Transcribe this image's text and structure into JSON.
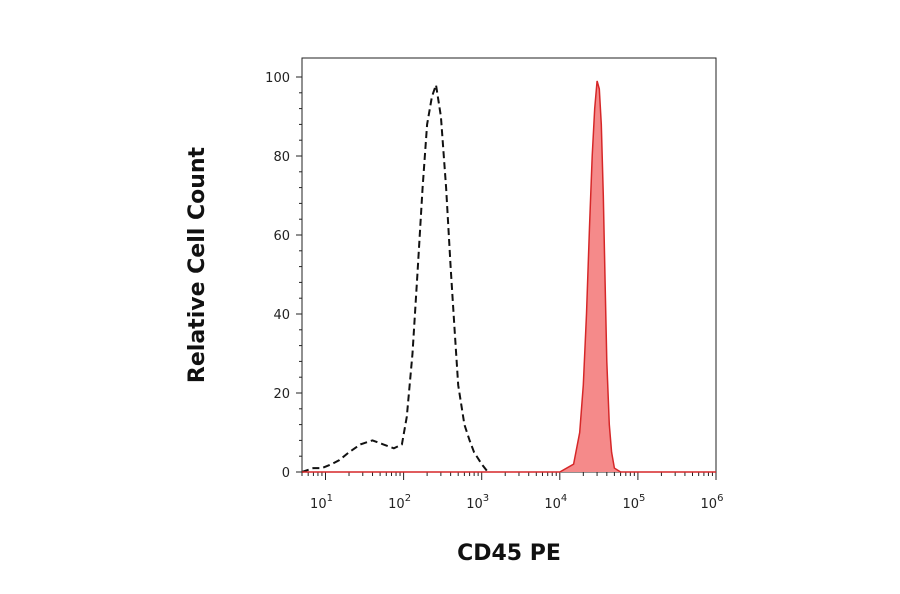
{
  "chart_data": {
    "type": "area",
    "title": "",
    "xlabel": "CD45 PE",
    "ylabel": "Relative Cell Count",
    "xscale": "log",
    "xlim": [
      5,
      1000000
    ],
    "ylim": [
      0,
      100
    ],
    "grid": false,
    "legend": "none",
    "x_ticks": [
      {
        "value": 10,
        "base": "10",
        "exp": "1"
      },
      {
        "value": 100,
        "base": "10",
        "exp": "2"
      },
      {
        "value": 1000,
        "base": "10",
        "exp": "3"
      },
      {
        "value": 10000,
        "base": "10",
        "exp": "4"
      },
      {
        "value": 100000,
        "base": "10",
        "exp": "5"
      },
      {
        "value": 1000000,
        "base": "10",
        "exp": "6"
      }
    ],
    "y_ticks": [
      "0",
      "20",
      "40",
      "60",
      "80",
      "100"
    ],
    "series": [
      {
        "style": "dashed-line",
        "color": "#111111",
        "x": [
          5,
          7,
          9,
          12,
          15,
          20,
          28,
          40,
          55,
          75,
          95,
          110,
          130,
          150,
          175,
          200,
          230,
          260,
          300,
          350,
          400,
          450,
          500,
          600,
          700,
          800,
          1000,
          1200
        ],
        "y": [
          0,
          1,
          1,
          2,
          3,
          5,
          7,
          8,
          7,
          6,
          7,
          14,
          30,
          50,
          72,
          88,
          95,
          98,
          90,
          72,
          52,
          36,
          22,
          12,
          8,
          5,
          2,
          0
        ]
      },
      {
        "style": "filled-area",
        "color": "#d62728",
        "fill": "#f58a8a",
        "x": [
          5,
          10000,
          15000,
          18000,
          20000,
          22000,
          24000,
          26000,
          28000,
          30000,
          32000,
          34000,
          36000,
          38000,
          40000,
          43000,
          46000,
          50000,
          60000,
          1000000
        ],
        "y": [
          0,
          0,
          2,
          10,
          22,
          40,
          62,
          80,
          92,
          99,
          97,
          88,
          70,
          48,
          28,
          12,
          5,
          1,
          0,
          0
        ]
      }
    ]
  }
}
